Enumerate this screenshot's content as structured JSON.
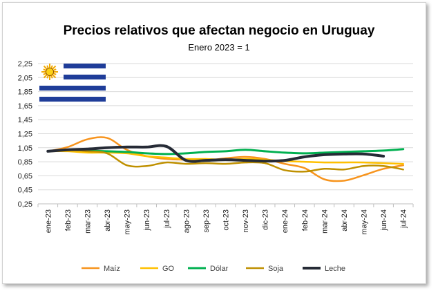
{
  "chart_data": {
    "type": "line",
    "title": "Precios relativos que afectan negocio en Uruguay",
    "subtitle": "Enero 2023 = 1",
    "xlabel": "",
    "ylabel": "",
    "ylim": [
      0.25,
      2.25
    ],
    "yticks": [
      "0,25",
      "0,45",
      "0,65",
      "0,85",
      "1,05",
      "1,25",
      "1,45",
      "1,65",
      "1,85",
      "2,05",
      "2,25"
    ],
    "categories": [
      "ene-23",
      "feb-23",
      "mar-23",
      "abr-23",
      "may-23",
      "jun-23",
      "jul-23",
      "ago-23",
      "sep-23",
      "oct-23",
      "nov-23",
      "dic-23",
      "ene-24",
      "feb-24",
      "mar-24",
      "abr-24",
      "may-24",
      "jun-24",
      "jul-24"
    ],
    "grid": true,
    "legend_position": "bottom",
    "series": [
      {
        "name": "Maíz",
        "color": "#f7941d",
        "width": 2.5,
        "values": [
          1.0,
          1.06,
          1.17,
          1.19,
          1.02,
          0.93,
          0.89,
          0.88,
          0.87,
          0.9,
          0.92,
          0.89,
          0.82,
          0.76,
          0.6,
          0.58,
          0.66,
          0.75,
          0.8
        ]
      },
      {
        "name": "GO",
        "color": "#ffc000",
        "width": 2.5,
        "values": [
          1.0,
          1.0,
          0.98,
          0.98,
          0.97,
          0.93,
          0.91,
          0.89,
          0.89,
          0.88,
          0.89,
          0.88,
          0.86,
          0.85,
          0.84,
          0.84,
          0.84,
          0.83,
          0.82
        ]
      },
      {
        "name": "Dólar",
        "color": "#00b050",
        "width": 3,
        "values": [
          1.0,
          1.02,
          1.01,
          1.0,
          0.99,
          0.97,
          0.96,
          0.97,
          0.99,
          1.0,
          1.02,
          1.0,
          0.98,
          0.97,
          0.98,
          0.99,
          1.0,
          1.01,
          1.03
        ]
      },
      {
        "name": "Soja",
        "color": "#bf9000",
        "width": 2.5,
        "values": [
          1.0,
          1.02,
          1.0,
          0.97,
          0.8,
          0.79,
          0.84,
          0.82,
          0.83,
          0.82,
          0.84,
          0.83,
          0.73,
          0.71,
          0.75,
          0.74,
          0.79,
          0.79,
          0.74
        ]
      },
      {
        "name": "Leche",
        "color": "#262b36",
        "width": 4,
        "values": [
          1.0,
          1.02,
          1.03,
          1.05,
          1.06,
          1.06,
          1.07,
          0.87,
          0.87,
          0.88,
          0.87,
          0.86,
          0.87,
          0.92,
          0.95,
          0.96,
          0.96,
          0.93,
          null
        ]
      }
    ],
    "flag_icon": "uruguay-flag-icon"
  }
}
